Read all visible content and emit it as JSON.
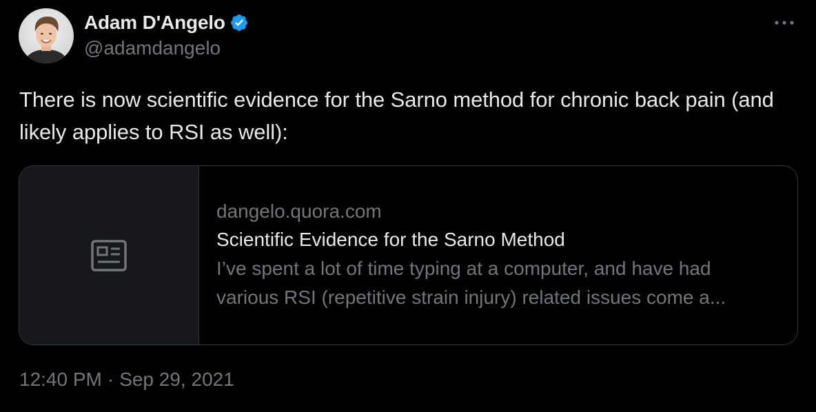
{
  "author": {
    "display_name": "Adam D'Angelo",
    "handle": "@adamdangelo",
    "verified_icon": "verified-badge-icon",
    "avatar": "profile-photo"
  },
  "tweet": {
    "text": "There is now scientific evidence for the Sarno method for chronic back pain (and likely applies to RSI as well):"
  },
  "link_card": {
    "media_icon": "article-placeholder-icon",
    "domain": "dangelo.quora.com",
    "title": "Scientific Evidence for the Sarno Method",
    "description": "I’ve spent a lot of time typing at a computer, and have had various RSI (repetitive strain injury) related issues come a..."
  },
  "meta": {
    "time": "12:40 PM",
    "separator": "·",
    "date": "Sep 29, 2021"
  },
  "colors": {
    "background": "#000000",
    "primary_text": "#e7e9ea",
    "secondary_text": "#71767b",
    "verified": "#1d9bf0",
    "border": "#333639",
    "card_media_bg": "#16181c"
  }
}
